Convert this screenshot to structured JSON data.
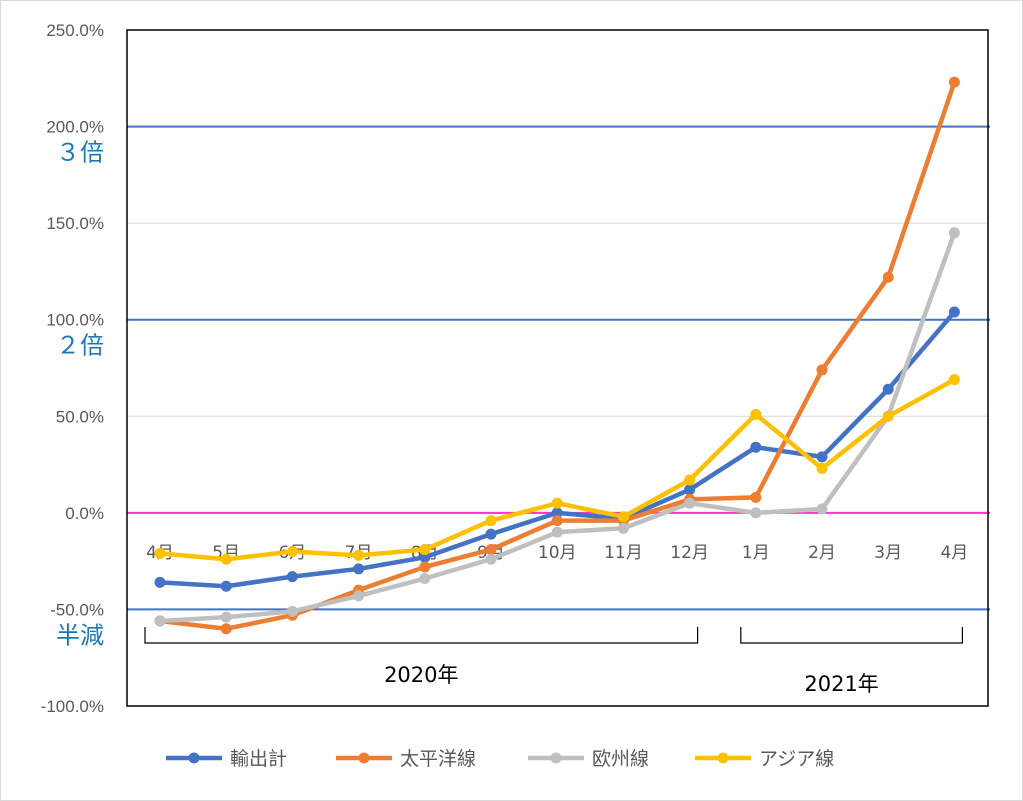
{
  "chart_data": {
    "type": "line",
    "title": "",
    "xlabel": "",
    "ylabel": "",
    "categories": [
      "4月",
      "5月",
      "6月",
      "7月",
      "8月",
      "9月",
      "10月",
      "11月",
      "12月",
      "1月",
      "2月",
      "3月",
      "4月"
    ],
    "ylim": [
      -100,
      250
    ],
    "y_tick_labels": [
      "250.0%",
      "200.0%",
      "150.0%",
      "100.0%",
      "50.0%",
      "0.0%",
      "-50.0%",
      "-100.0%"
    ],
    "y_ticks": [
      250,
      200,
      150,
      100,
      50,
      0,
      -50,
      -100
    ],
    "grid": true,
    "legend_position": "bottom",
    "series": [
      {
        "name": "輸出計",
        "color": "#4472C4",
        "values": [
          -36,
          -38,
          -33,
          -29,
          -23,
          -11,
          0,
          -3,
          12,
          34,
          29,
          64,
          104
        ]
      },
      {
        "name": "太平洋線",
        "color": "#ED7D31",
        "values": [
          -56,
          -60,
          -53,
          -40,
          -28,
          -19,
          -4,
          -4,
          7,
          8,
          74,
          122,
          223
        ]
      },
      {
        "name": "欧州線",
        "color": "#BFBFBF",
        "values": [
          -56,
          -54,
          -51,
          -43,
          -34,
          -24,
          -10,
          -8,
          5,
          0,
          2,
          50,
          145
        ]
      },
      {
        "name": "アジア線",
        "color": "#FFC000",
        "values": [
          -21,
          -24,
          -20,
          -22,
          -19,
          -4,
          5,
          -2,
          17,
          51,
          23,
          50,
          69
        ]
      }
    ],
    "reference_lines": [
      {
        "value": 200,
        "color": "#4472C4",
        "label": "３倍"
      },
      {
        "value": 100,
        "color": "#4472C4",
        "label": "２倍"
      },
      {
        "value": 0,
        "color": "#FF33CC",
        "label": ""
      },
      {
        "value": -50,
        "color": "#4472C4",
        "label": "半減"
      }
    ],
    "year_groups": [
      {
        "label": "2020年",
        "from": 0,
        "to": 8
      },
      {
        "label": "2021年",
        "from": 9,
        "to": 12
      }
    ]
  }
}
